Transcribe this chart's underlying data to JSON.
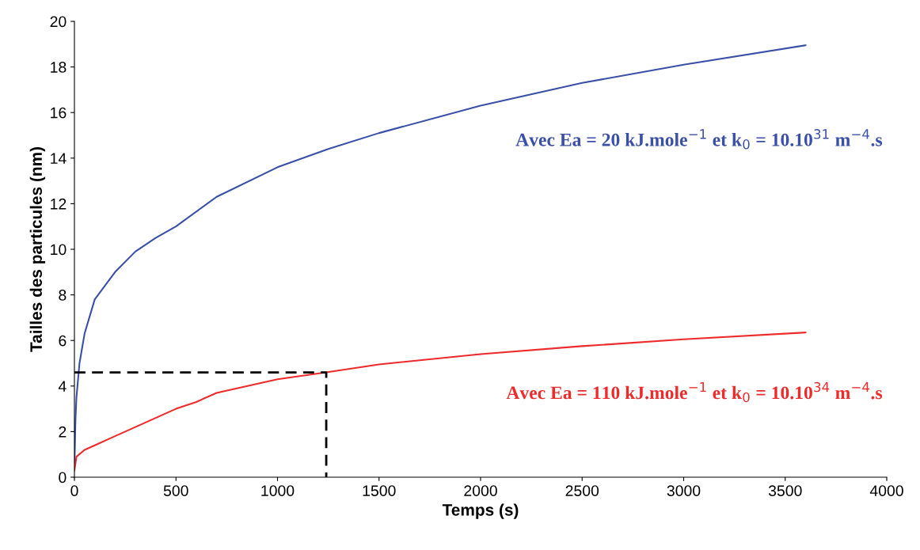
{
  "chart_data": {
    "type": "line",
    "xlabel": "Temps (s)",
    "ylabel": "Tailles des particules (nm)",
    "xlim": [
      0,
      4000
    ],
    "xticks": [
      0,
      500,
      1000,
      1500,
      2000,
      2500,
      3000,
      3500,
      4000
    ],
    "ylim": [
      0,
      20
    ],
    "yticks": [
      0,
      2,
      4,
      6,
      8,
      10,
      12,
      14,
      16,
      18,
      20
    ],
    "grid": false,
    "legend": false,
    "marker": "none",
    "series": [
      {
        "name": "Avec Ea = 20 kJ.mole$^{−1}$ et k$_{0}$ = 10.10$^{31}$ m$^{−4}$.s",
        "color": "#3a4fa8",
        "x": [
          0,
          5,
          10,
          25,
          50,
          100,
          200,
          300,
          400,
          500,
          700,
          1000,
          1250,
          1500,
          2000,
          2500,
          3000,
          3600
        ],
        "values": [
          0.5,
          2.5,
          3.5,
          5.0,
          6.3,
          7.8,
          9.0,
          9.9,
          10.5,
          11.0,
          12.3,
          13.6,
          14.4,
          15.1,
          16.3,
          17.3,
          18.1,
          18.95
        ]
      },
      {
        "name": "Avec Ea = 110 kJ.mole$^{−1}$ et k$_{0}$ = 10.10$^{34}$ m$^{−4}$.s",
        "color": "#ee2a2a",
        "x": [
          0,
          10,
          50,
          100,
          200,
          300,
          400,
          500,
          600,
          700,
          800,
          1000,
          1240,
          1500,
          2000,
          2500,
          3000,
          3600
        ],
        "values": [
          0.3,
          0.9,
          1.2,
          1.4,
          1.8,
          2.2,
          2.6,
          3.0,
          3.3,
          3.7,
          3.9,
          4.3,
          4.6,
          4.95,
          5.4,
          5.75,
          6.05,
          6.35
        ]
      },
      {
        "color": "#000000",
        "line_style": "dashed",
        "x": [
          0,
          1240,
          1240
        ],
        "values": [
          4.6,
          4.6,
          0
        ]
      }
    ]
  }
}
